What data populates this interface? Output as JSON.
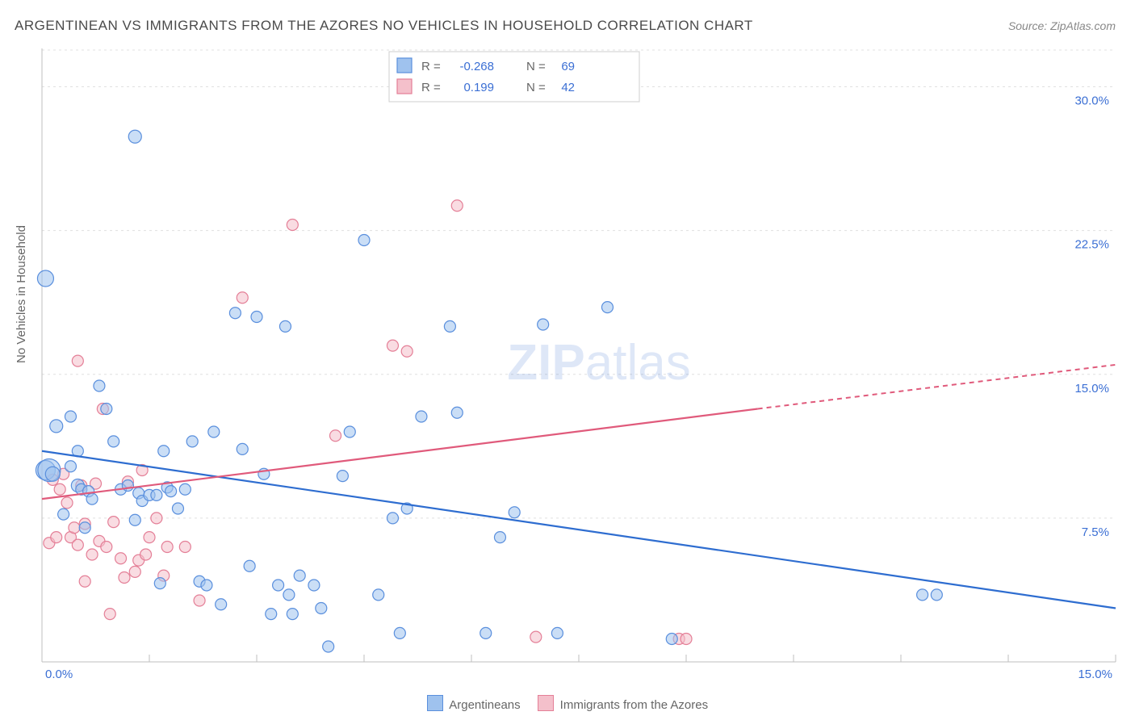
{
  "title": "ARGENTINEAN VS IMMIGRANTS FROM THE AZORES NO VEHICLES IN HOUSEHOLD CORRELATION CHART",
  "source": "Source: ZipAtlas.com",
  "ylabel": "No Vehicles in Household",
  "watermark": "ZIPatlas",
  "chart": {
    "type": "scatter",
    "background_color": "#ffffff",
    "grid_color": "#e0e0e0",
    "axis_color": "#bfbfbf",
    "text_color": "#666666",
    "value_color": "#3b6fd4",
    "xlim": [
      0,
      15
    ],
    "ylim": [
      0,
      32
    ],
    "xticks": [
      0,
      1.5,
      3,
      4.5,
      6,
      7.5,
      9,
      10.5,
      12,
      13.5,
      15
    ],
    "xtick_labels": {
      "0": "0.0%",
      "15": "15.0%"
    },
    "yticks": [
      7.5,
      15.0,
      22.5,
      30.0
    ],
    "series": [
      {
        "name": "Argentineans",
        "fill": "#9fc2ee",
        "stroke": "#5a8fdd",
        "line_color": "#2e6dd0",
        "R": "-0.268",
        "N": "69",
        "trend": {
          "x1": 0,
          "y1": 11.0,
          "x2": 15,
          "y2": 2.8,
          "dash": null
        },
        "points": [
          [
            0.05,
            20.0,
            10
          ],
          [
            0.05,
            10.0,
            12
          ],
          [
            0.1,
            10.0,
            14
          ],
          [
            0.15,
            9.8,
            9
          ],
          [
            0.2,
            12.3,
            8
          ],
          [
            0.3,
            7.7,
            7
          ],
          [
            0.4,
            10.2,
            7
          ],
          [
            0.4,
            12.8,
            7
          ],
          [
            0.5,
            9.2,
            8
          ],
          [
            0.5,
            11.0,
            7
          ],
          [
            0.55,
            9.0,
            7
          ],
          [
            0.6,
            7.0,
            7
          ],
          [
            0.65,
            8.9,
            7
          ],
          [
            0.7,
            8.5,
            7
          ],
          [
            0.8,
            14.4,
            7
          ],
          [
            0.9,
            13.2,
            7
          ],
          [
            1.0,
            11.5,
            7
          ],
          [
            1.1,
            9.0,
            7
          ],
          [
            1.2,
            9.2,
            7
          ],
          [
            1.3,
            27.4,
            8
          ],
          [
            1.3,
            7.4,
            7
          ],
          [
            1.35,
            8.8,
            7
          ],
          [
            1.4,
            8.4,
            7
          ],
          [
            1.5,
            8.7,
            7
          ],
          [
            1.6,
            8.7,
            7
          ],
          [
            1.65,
            4.1,
            7
          ],
          [
            1.7,
            11.0,
            7
          ],
          [
            1.75,
            9.1,
            7
          ],
          [
            1.8,
            8.9,
            7
          ],
          [
            1.9,
            8.0,
            7
          ],
          [
            2.0,
            9.0,
            7
          ],
          [
            2.1,
            11.5,
            7
          ],
          [
            2.2,
            4.2,
            7
          ],
          [
            2.3,
            4.0,
            7
          ],
          [
            2.4,
            12.0,
            7
          ],
          [
            2.5,
            3.0,
            7
          ],
          [
            2.7,
            18.2,
            7
          ],
          [
            2.8,
            11.1,
            7
          ],
          [
            2.9,
            5.0,
            7
          ],
          [
            3.0,
            18.0,
            7
          ],
          [
            3.1,
            9.8,
            7
          ],
          [
            3.2,
            2.5,
            7
          ],
          [
            3.3,
            4.0,
            7
          ],
          [
            3.4,
            17.5,
            7
          ],
          [
            3.45,
            3.5,
            7
          ],
          [
            3.5,
            2.5,
            7
          ],
          [
            3.6,
            4.5,
            7
          ],
          [
            3.8,
            4.0,
            7
          ],
          [
            3.9,
            2.8,
            7
          ],
          [
            4.0,
            0.8,
            7
          ],
          [
            4.2,
            9.7,
            7
          ],
          [
            4.3,
            12.0,
            7
          ],
          [
            4.5,
            22.0,
            7
          ],
          [
            4.7,
            3.5,
            7
          ],
          [
            4.9,
            7.5,
            7
          ],
          [
            5.0,
            1.5,
            7
          ],
          [
            5.1,
            8.0,
            7
          ],
          [
            5.3,
            12.8,
            7
          ],
          [
            5.7,
            17.5,
            7
          ],
          [
            5.8,
            13.0,
            7
          ],
          [
            6.2,
            1.5,
            7
          ],
          [
            6.4,
            6.5,
            7
          ],
          [
            6.6,
            7.8,
            7
          ],
          [
            7.0,
            17.6,
            7
          ],
          [
            7.2,
            1.5,
            7
          ],
          [
            7.9,
            18.5,
            7
          ],
          [
            8.8,
            1.2,
            7
          ],
          [
            12.3,
            3.5,
            7
          ],
          [
            12.5,
            3.5,
            7
          ]
        ]
      },
      {
        "name": "Immigrants from the Azores",
        "fill": "#f4c0cb",
        "stroke": "#e47f97",
        "line_color": "#e05a7b",
        "R": "0.199",
        "N": "42",
        "trend": {
          "x1": 0,
          "y1": 8.5,
          "x2": 10,
          "y2": 13.2,
          "dash_from": 10,
          "x3": 15,
          "y3": 15.5
        },
        "points": [
          [
            0.1,
            6.2,
            7
          ],
          [
            0.15,
            9.5,
            7
          ],
          [
            0.2,
            6.5,
            7
          ],
          [
            0.25,
            9.0,
            7
          ],
          [
            0.3,
            9.8,
            7
          ],
          [
            0.35,
            8.3,
            7
          ],
          [
            0.4,
            6.5,
            7
          ],
          [
            0.45,
            7.0,
            7
          ],
          [
            0.5,
            15.7,
            7
          ],
          [
            0.5,
            6.1,
            7
          ],
          [
            0.55,
            9.2,
            7
          ],
          [
            0.6,
            7.2,
            7
          ],
          [
            0.6,
            4.2,
            7
          ],
          [
            0.7,
            5.6,
            7
          ],
          [
            0.75,
            9.3,
            7
          ],
          [
            0.8,
            6.3,
            7
          ],
          [
            0.85,
            13.2,
            7
          ],
          [
            0.9,
            6.0,
            7
          ],
          [
            0.95,
            2.5,
            7
          ],
          [
            1.0,
            7.3,
            7
          ],
          [
            1.1,
            5.4,
            7
          ],
          [
            1.15,
            4.4,
            7
          ],
          [
            1.2,
            9.4,
            7
          ],
          [
            1.3,
            4.7,
            7
          ],
          [
            1.35,
            5.3,
            7
          ],
          [
            1.4,
            10.0,
            7
          ],
          [
            1.45,
            5.6,
            7
          ],
          [
            1.5,
            6.5,
            7
          ],
          [
            1.6,
            7.5,
            7
          ],
          [
            1.7,
            4.5,
            7
          ],
          [
            1.75,
            6.0,
            7
          ],
          [
            2.0,
            6.0,
            7
          ],
          [
            2.2,
            3.2,
            7
          ],
          [
            2.8,
            19.0,
            7
          ],
          [
            3.5,
            22.8,
            7
          ],
          [
            4.1,
            11.8,
            7
          ],
          [
            4.9,
            16.5,
            7
          ],
          [
            5.1,
            16.2,
            7
          ],
          [
            5.8,
            23.8,
            7
          ],
          [
            6.9,
            1.3,
            7
          ],
          [
            8.9,
            1.2,
            7
          ],
          [
            9.0,
            1.2,
            7
          ]
        ]
      }
    ]
  },
  "legend_top": {
    "rows": [
      {
        "swatch_series": 0,
        "R_label": "R =",
        "R_val": "-0.268",
        "N_label": "N =",
        "N_val": "69"
      },
      {
        "swatch_series": 1,
        "R_label": "R =",
        "R_val": "0.199",
        "N_label": "N =",
        "N_val": "42"
      }
    ]
  },
  "bottom_legend": {
    "series1": "Argentineans",
    "series2": "Immigrants from the Azores"
  }
}
